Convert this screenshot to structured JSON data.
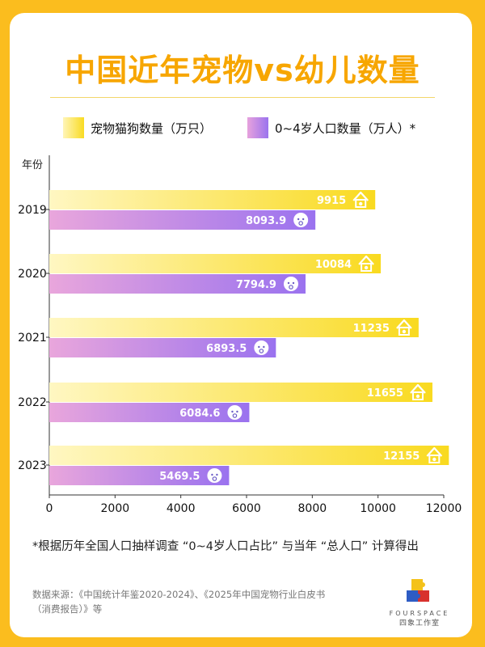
{
  "title": "中国近年宠物vs幼儿数量",
  "legend": {
    "pet_label": "宠物猫狗数量（万只）",
    "child_label": "0~4岁人口数量（万人）*"
  },
  "footnote": "*根据历年全国人口抽样调查 “0~4岁人口占比” 与当年 “总人口” 计算得出",
  "source": "数据来源：《中国统计年鉴2020-2024》、《2025年中国宠物行业白皮书（消费报告）》等",
  "brand": {
    "name": "FOURSPACE",
    "subtitle": "四象工作室"
  },
  "chart_data": {
    "type": "bar",
    "orientation": "horizontal",
    "y_axis_title": "年份",
    "categories": [
      "2019",
      "2020",
      "2021",
      "2022",
      "2023"
    ],
    "series": [
      {
        "name": "宠物猫狗数量（万只）",
        "values": [
          9915,
          10084,
          11235,
          11655,
          12155
        ],
        "labels": [
          "9915",
          "10084",
          "11235",
          "11655",
          "12155"
        ],
        "icon": "house-icon",
        "color_start": "#FFF7C2",
        "color_end": "#F9DA1F",
        "label_color": "#ffffff"
      },
      {
        "name": "0~4岁人口数量（万人）*",
        "values": [
          8093.9,
          7794.9,
          6893.5,
          6084.6,
          5469.5
        ],
        "labels": [
          "8093.9",
          "7794.9",
          "6893.5",
          "6084.6",
          "5469.5"
        ],
        "icon": "baby-icon",
        "color_start": "#E9A6DC",
        "color_end": "#9A72EF",
        "label_color": "#ffffff"
      }
    ],
    "x_ticks": [
      "0",
      "2000",
      "4000",
      "6000",
      "8000",
      "10000",
      "12000"
    ],
    "xlim": [
      0,
      12000
    ],
    "grid": false,
    "legend_position": "top"
  }
}
